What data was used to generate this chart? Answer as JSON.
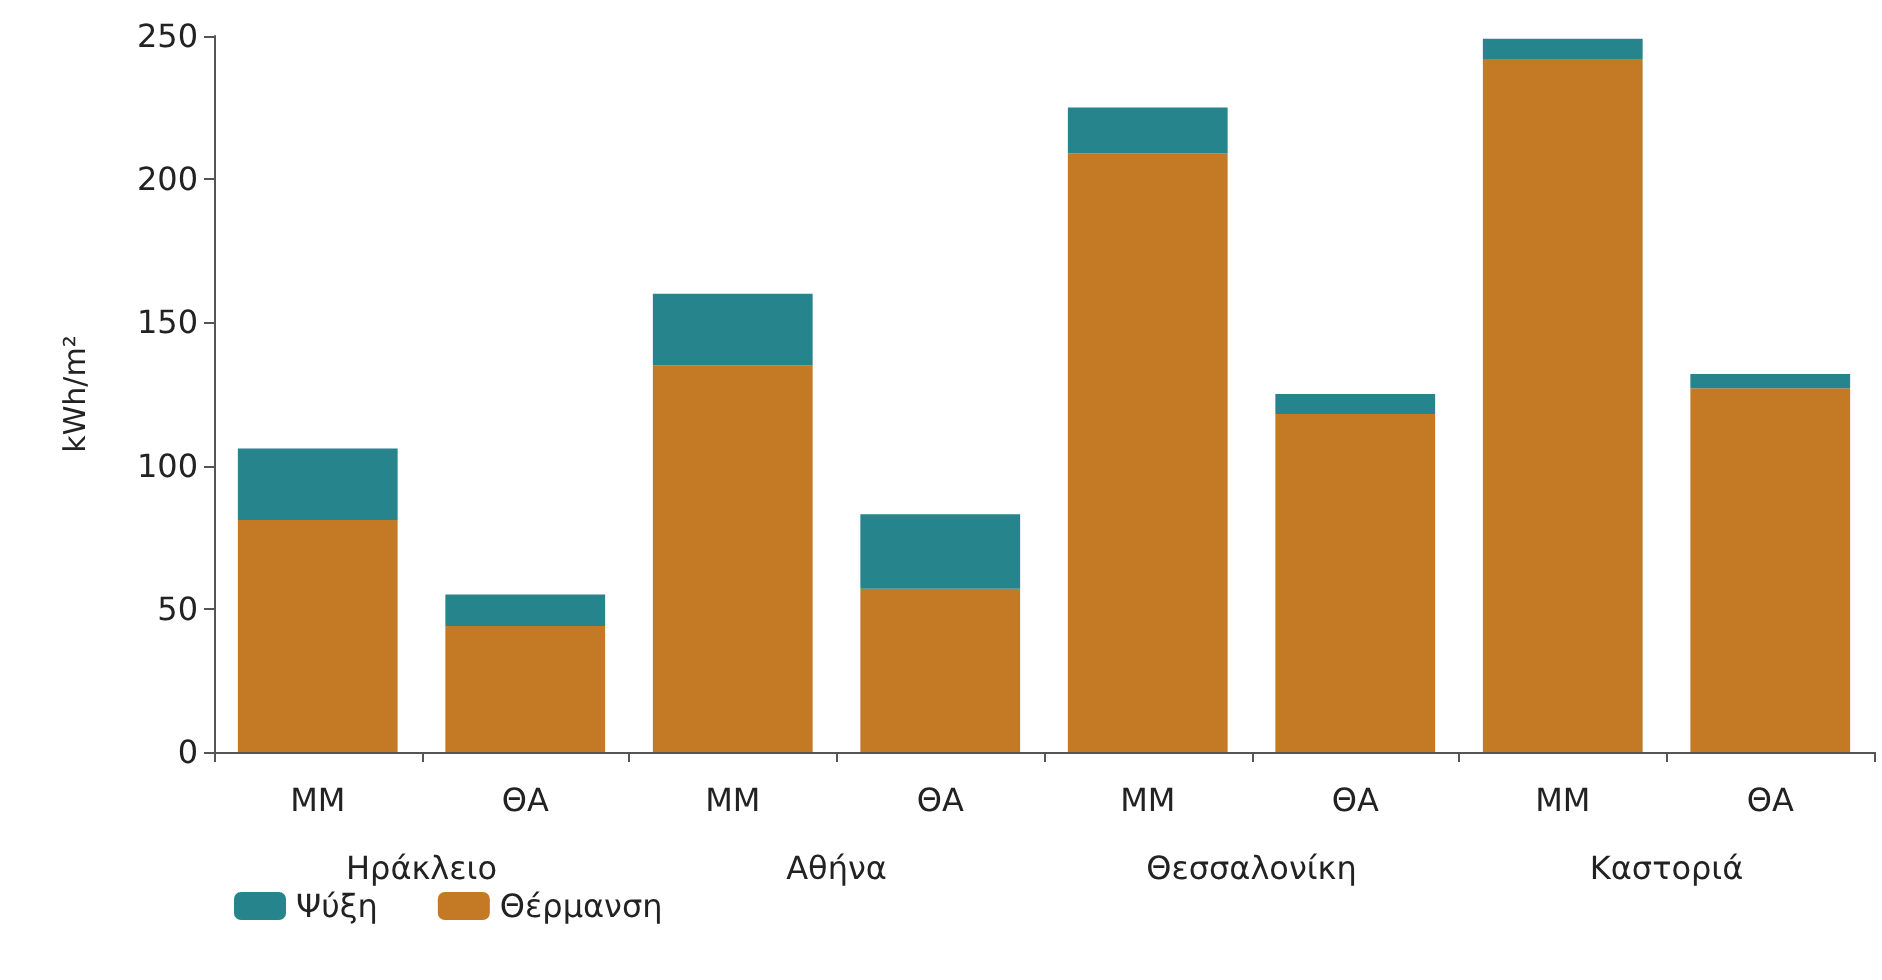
{
  "chart_data": {
    "type": "bar",
    "stacked": true,
    "ylabel": "kWh/m²",
    "categories": [
      "ΜΜ",
      "ΘΑ",
      "ΜΜ",
      "ΘΑ",
      "ΜΜ",
      "ΘΑ",
      "ΜΜ",
      "ΘΑ"
    ],
    "annotations": [
      "Ηράκλειο",
      "Αθήνα",
      "Θεσσαλονίκη",
      "Καστοριά"
    ],
    "series": [
      {
        "name": "Θέρμανση",
        "color": "#c47a25",
        "values": [
          81,
          44,
          135,
          57,
          209,
          118,
          242,
          127
        ]
      },
      {
        "name": "Ψύξη",
        "color": "#25848c",
        "values": [
          25,
          11,
          25,
          26,
          16,
          7,
          7,
          5
        ]
      }
    ],
    "ylim": [
      0,
      250
    ],
    "yticks": [
      0,
      50,
      100,
      150,
      200,
      250
    ],
    "grid": false,
    "legend": "bottom left"
  }
}
